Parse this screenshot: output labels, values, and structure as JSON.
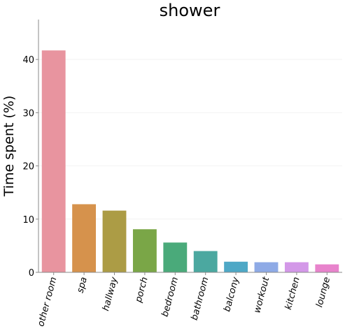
{
  "chart_data": {
    "type": "bar",
    "title": "shower",
    "xlabel": "",
    "ylabel": "Time spent (%)",
    "ylim": [
      0,
      47.5
    ],
    "yticks": [
      0,
      10,
      20,
      30,
      40
    ],
    "grid": true,
    "categories": [
      "other room",
      "spa",
      "hallway",
      "porch",
      "bedroom",
      "bathroom",
      "balcony",
      "workout",
      "kitchen",
      "lounge"
    ],
    "values": [
      41.7,
      12.8,
      11.6,
      8.1,
      5.6,
      4.0,
      2.0,
      1.9,
      1.9,
      1.5
    ],
    "colors": [
      "#e8949f",
      "#d6924c",
      "#ac9c45",
      "#7aa647",
      "#4aaa7a",
      "#4ba8a0",
      "#4ea8c6",
      "#8eaae6",
      "#d398e8",
      "#e883cc"
    ]
  }
}
